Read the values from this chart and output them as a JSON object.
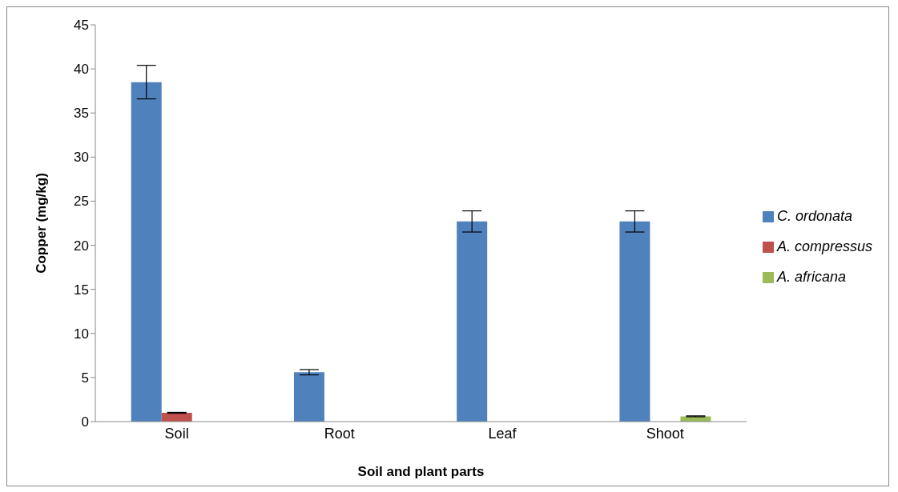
{
  "chart_data": {
    "type": "bar",
    "xlabel": "Soil and plant parts",
    "ylabel": "Copper (mg/kg)",
    "categories": [
      "Soil",
      "Root",
      "Leaf",
      "Shoot"
    ],
    "series": [
      {
        "name": "C. ordonata",
        "color": "#4f81bd",
        "values": [
          38.5,
          5.6,
          22.7,
          22.7
        ],
        "errors": [
          1.9,
          0.3,
          1.2,
          1.2
        ]
      },
      {
        "name": "A. compressus",
        "color": "#c0504d",
        "values": [
          1.0,
          null,
          null,
          null
        ],
        "errors": [
          0.05,
          null,
          null,
          null
        ]
      },
      {
        "name": "A. africana",
        "color": "#9bbb59",
        "values": [
          null,
          null,
          null,
          0.6
        ],
        "errors": [
          null,
          null,
          null,
          0.05
        ]
      }
    ],
    "ylim": [
      0,
      45
    ],
    "yticks": [
      0,
      5,
      10,
      15,
      20,
      25,
      30,
      35,
      40,
      45
    ],
    "grid": false,
    "legend": "right"
  }
}
